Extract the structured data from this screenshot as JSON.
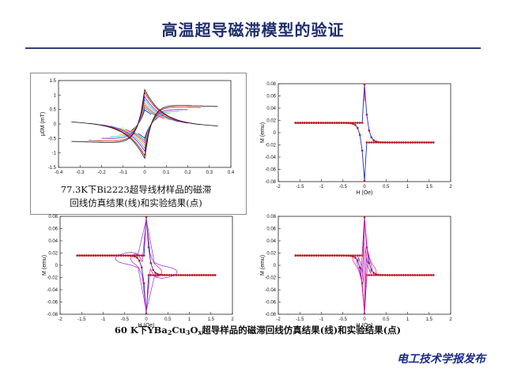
{
  "title": "高温超导磁滞模型的验证",
  "caption1": {
    "line1": "77.3K下Bi2223超导线材样品的磁滞",
    "line2": "回线仿真结果(线)和实验结果(点)"
  },
  "caption2": {
    "pre": "60 K下YBa",
    "s1": "2",
    "mid1": "Cu",
    "s2": "3",
    "mid2": "O",
    "s3": "x",
    "post": "超导样品的磁滞回线仿真结果(线)和实验结果(点)"
  },
  "footer": "电工技术学报发布",
  "chart_data": [
    {
      "type": "line",
      "id": "bi2223",
      "xlabel": "",
      "ylabel": "μ0M (mT)",
      "xlim": [
        -0.4,
        0.4
      ],
      "ylim": [
        -1.5,
        1.5
      ],
      "xticks": [
        "-0.4",
        "-0.3",
        "-0.2",
        "-0.1",
        "0",
        "0.1",
        "0.2",
        "0.3",
        "0.4"
      ],
      "yticks": [
        "1.5",
        "1",
        "0.5",
        "0",
        "-0.5",
        "-1",
        "-1.5"
      ],
      "series_colors": [
        "#0000ff",
        "#00aa00",
        "#ff00ff",
        "#ffaa00",
        "#00cccc",
        "#8800cc",
        "#cc0000",
        "#111111"
      ],
      "loop_amplitudes": [
        0.03,
        0.06,
        0.09,
        0.12,
        0.16,
        0.2,
        0.26,
        0.34
      ],
      "peak_value": 1.25
    },
    {
      "type": "scatter",
      "id": "ybco-1",
      "xlabel": "H (Oe)",
      "ylabel": "M (emu)",
      "xlim": [
        -2,
        2
      ],
      "ylim": [
        -0.08,
        0.08
      ],
      "xticks": [
        "-2",
        "-1.5",
        "-1",
        "-0.5",
        "0",
        "0.5",
        "1",
        "1.5",
        "2"
      ],
      "yticks": [
        "0.08",
        "0.06",
        "0.04",
        "0.02",
        "0",
        "-0.02",
        "-0.04",
        "-0.06",
        "-0.08"
      ],
      "hmax": 1.6,
      "peak": 0.074,
      "minor_loops": [
        0.0
      ]
    },
    {
      "type": "scatter",
      "id": "ybco-2",
      "xlabel": "H (Oe)",
      "ylabel": "M (emu)",
      "xlim": [
        -2,
        2
      ],
      "ylim": [
        -0.08,
        0.08
      ],
      "xticks": [
        "-2",
        "-1.5",
        "-1",
        "-0.5",
        "0",
        "0.5",
        "1",
        "1.5",
        "2"
      ],
      "yticks": [
        "0.08",
        "0.06",
        "0.04",
        "0.02",
        "0",
        "-0.02",
        "-0.04",
        "-0.06",
        "-0.08"
      ],
      "hmax": 1.6,
      "peak": 0.074,
      "minor_loops": [
        0.4,
        0.8
      ]
    },
    {
      "type": "scatter",
      "id": "ybco-3",
      "xlabel": "H (Oe)",
      "ylabel": "M (emu)",
      "xlim": [
        -2,
        2
      ],
      "ylim": [
        -0.08,
        0.08
      ],
      "xticks": [
        "-2",
        "-1.5",
        "-1",
        "-0.5",
        "0",
        "0.5",
        "1",
        "1.5",
        "2"
      ],
      "yticks": [
        "0.08",
        "0.06",
        "0.04",
        "0.02",
        "0",
        "-0.02",
        "-0.04",
        "-0.06",
        "-0.08"
      ],
      "hmax": 1.6,
      "peak": 0.074,
      "minor_loops": [
        0.1,
        0.2,
        0.3
      ]
    }
  ]
}
